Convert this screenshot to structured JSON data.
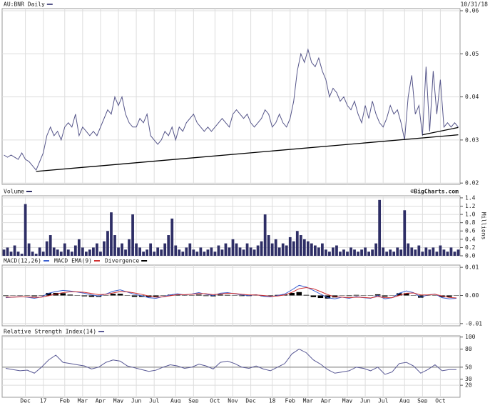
{
  "chart_data": [
    {
      "type": "line",
      "date": "10/31/18",
      "series": [
        {
          "name": "AU:BNR Daily",
          "color": "#56568a",
          "values": [
            0.0265,
            0.026,
            0.0265,
            0.026,
            0.0255,
            0.027,
            0.0255,
            0.025,
            0.024,
            0.023,
            0.025,
            0.027,
            0.031,
            0.033,
            0.031,
            0.032,
            0.03,
            0.033,
            0.034,
            0.033,
            0.036,
            0.031,
            0.033,
            0.032,
            0.031,
            0.032,
            0.031,
            0.033,
            0.035,
            0.037,
            0.036,
            0.04,
            0.038,
            0.04,
            0.036,
            0.034,
            0.033,
            0.033,
            0.035,
            0.034,
            0.036,
            0.031,
            0.03,
            0.029,
            0.03,
            0.032,
            0.031,
            0.033,
            0.03,
            0.033,
            0.032,
            0.034,
            0.035,
            0.036,
            0.034,
            0.033,
            0.032,
            0.033,
            0.032,
            0.033,
            0.034,
            0.035,
            0.034,
            0.033,
            0.036,
            0.037,
            0.036,
            0.035,
            0.036,
            0.034,
            0.033,
            0.034,
            0.035,
            0.037,
            0.036,
            0.033,
            0.034,
            0.036,
            0.034,
            0.033,
            0.035,
            0.039,
            0.046,
            0.05,
            0.048,
            0.051,
            0.048,
            0.047,
            0.049,
            0.046,
            0.044,
            0.04,
            0.042,
            0.041,
            0.039,
            0.04,
            0.038,
            0.037,
            0.039,
            0.036,
            0.034,
            0.038,
            0.035,
            0.039,
            0.036,
            0.034,
            0.033,
            0.035,
            0.038,
            0.036,
            0.037,
            0.034,
            0.03,
            0.04,
            0.045,
            0.036,
            0.038,
            0.031,
            0.047,
            0.032,
            0.046,
            0.036,
            0.044,
            0.033,
            0.034,
            0.033,
            0.034,
            0.033
          ]
        }
      ],
      "trend_lines": [
        {
          "x": [
            9,
            127
          ],
          "y": [
            0.0227,
            0.0312
          ],
          "color": "#000000"
        },
        {
          "x": [
            117,
            127
          ],
          "y": [
            0.0312,
            0.0329
          ],
          "color": "#000000"
        }
      ],
      "categories": [
        null,
        null,
        null,
        null,
        null,
        null,
        "Dec",
        null,
        null,
        null,
        null,
        "17",
        null,
        null,
        null,
        null,
        null,
        "Feb",
        null,
        null,
        null,
        null,
        "Mar",
        null,
        null,
        null,
        null,
        "Apr",
        null,
        null,
        null,
        null,
        "May",
        null,
        null,
        null,
        null,
        "Jun",
        null,
        null,
        null,
        null,
        "Jul",
        null,
        null,
        null,
        null,
        null,
        "Aug",
        null,
        null,
        null,
        null,
        "Sep",
        null,
        null,
        null,
        null,
        null,
        "Oct",
        null,
        null,
        null,
        null,
        "Nov",
        null,
        null,
        null,
        null,
        "Dec",
        null,
        null,
        null,
        null,
        null,
        "18",
        null,
        null,
        null,
        null,
        "Feb",
        null,
        null,
        null,
        null,
        "Mar",
        null,
        null,
        null,
        null,
        "Apr",
        null,
        null,
        null,
        null,
        null,
        "May",
        null,
        null,
        null,
        null,
        "Jun",
        null,
        null,
        null,
        null,
        "Jul",
        null,
        null,
        null,
        null,
        null,
        "Aug",
        null,
        null,
        null,
        null,
        "Sep",
        null,
        null,
        null,
        null,
        "Oct",
        null,
        null,
        null,
        null,
        null
      ],
      "ylim": [
        0.0197,
        0.0605
      ],
      "yticks": [
        0.02,
        0.03,
        0.04,
        0.05,
        0.06
      ],
      "grid": true
    },
    {
      "type": "bar",
      "source": "©BigCharts.com",
      "ylabel": "Millions",
      "series": [
        {
          "name": "Volume",
          "color": "#2e2e66",
          "values": [
            0.15,
            0.2,
            0.1,
            0.25,
            0.1,
            0.05,
            1.25,
            0.3,
            0.1,
            0.05,
            0.2,
            0.1,
            0.35,
            0.5,
            0.2,
            0.15,
            0.1,
            0.3,
            0.15,
            0.1,
            0.25,
            0.4,
            0.2,
            0.1,
            0.15,
            0.2,
            0.3,
            0.1,
            0.35,
            0.6,
            1.05,
            0.5,
            0.2,
            0.3,
            0.15,
            0.4,
            1.0,
            0.3,
            0.2,
            0.1,
            0.15,
            0.3,
            0.1,
            0.2,
            0.15,
            0.3,
            0.5,
            0.9,
            0.25,
            0.15,
            0.1,
            0.2,
            0.3,
            0.15,
            0.1,
            0.2,
            0.1,
            0.15,
            0.2,
            0.1,
            0.25,
            0.15,
            0.3,
            0.2,
            0.4,
            0.3,
            0.2,
            0.15,
            0.3,
            0.2,
            0.15,
            0.25,
            0.35,
            1.0,
            0.5,
            0.3,
            0.4,
            0.2,
            0.3,
            0.25,
            0.45,
            0.35,
            0.6,
            0.5,
            0.4,
            0.35,
            0.3,
            0.25,
            0.2,
            0.3,
            0.15,
            0.1,
            0.2,
            0.25,
            0.1,
            0.15,
            0.1,
            0.2,
            0.15,
            0.1,
            0.15,
            0.2,
            0.1,
            0.15,
            0.3,
            1.35,
            0.2,
            0.1,
            0.15,
            0.1,
            0.2,
            0.15,
            1.1,
            0.3,
            0.2,
            0.15,
            0.25,
            0.1,
            0.2,
            0.15,
            0.2,
            0.1,
            0.25,
            0.15,
            0.1,
            0.2,
            0.1,
            0.15
          ]
        }
      ],
      "ylim": [
        0,
        1.45
      ],
      "yticks": [
        {
          "value": 0,
          "label": "0.0"
        },
        0.2,
        0.4,
        0.6,
        0.8,
        {
          "value": 1,
          "label": "1.0"
        },
        1.2,
        1.4
      ],
      "grid": true
    },
    {
      "type": "line",
      "series": [
        {
          "name": "MACD(12,26)",
          "color": "#3a5fd0",
          "values": [
            -0.0008,
            -0.0006,
            -0.0004,
            -0.0006,
            -0.001,
            -0.0005,
            0.0008,
            0.0014,
            0.0018,
            0.0016,
            0.0012,
            0.0008,
            0.0002,
            -0.0002,
            0.0005,
            0.0015,
            0.002,
            0.0012,
            0.0004,
            -0.0001,
            -0.0008,
            -0.001,
            -0.0004,
            0.0002,
            0.0006,
            0.0002,
            0.0005,
            0.001,
            0.0004,
            0.0,
            0.0008,
            0.001,
            0.0006,
            0.0002,
            0.0,
            0.0003,
            -0.0003,
            -0.0005,
            0.0,
            0.0005,
            0.002,
            0.0036,
            0.003,
            0.0018,
            0.0005,
            -0.0008,
            -0.0012,
            -0.0006,
            -0.001,
            -0.0004,
            -0.0008,
            -0.001,
            0.0,
            -0.0012,
            -0.0008,
            0.0008,
            0.0016,
            0.001,
            -0.0006,
            0.0002,
            0.0005,
            -0.0008,
            -0.0012,
            -0.001
          ]
        },
        {
          "name": "MACD EMA(9)",
          "color": "#d03030",
          "values": [
            -0.0006,
            -0.0006,
            -0.0005,
            -0.0005,
            -0.0007,
            -0.0006,
            -0.0001,
            0.0005,
            0.001,
            0.0013,
            0.0013,
            0.0011,
            0.0007,
            0.0003,
            0.0004,
            0.0009,
            0.0014,
            0.0013,
            0.0009,
            0.0004,
            -0.0002,
            -0.0006,
            -0.0005,
            -0.0001,
            0.0003,
            0.0003,
            0.0004,
            0.0007,
            0.0006,
            0.0003,
            0.0005,
            0.0008,
            0.0007,
            0.0004,
            0.0002,
            0.0002,
            0.0,
            -0.0003,
            -0.0002,
            0.0002,
            0.0011,
            0.0024,
            0.0028,
            0.0024,
            0.0014,
            0.0003,
            -0.0005,
            -0.0006,
            -0.0008,
            -0.0006,
            -0.0007,
            -0.0009,
            -0.0004,
            -0.0008,
            -0.0008,
            0.0,
            0.0008,
            0.0009,
            0.0002,
            0.0002,
            0.0004,
            -0.0002,
            -0.0007,
            -0.0009
          ]
        },
        {
          "name": "Divergence",
          "color": "#000000",
          "style": "bar",
          "values": [
            -0.0002,
            0,
            0.0001,
            -0.0001,
            -0.0003,
            0.0001,
            0.0009,
            0.0009,
            0.0008,
            0.0003,
            -0.0001,
            -0.0003,
            -0.0005,
            -0.0005,
            0.0001,
            0.0006,
            0.0006,
            -0.0001,
            -0.0005,
            -0.0005,
            -0.0006,
            -0.0004,
            0.0001,
            0.0003,
            0.0003,
            -0.0001,
            0.0001,
            0.0003,
            -0.0002,
            -0.0003,
            0.0003,
            0.0002,
            -0.0001,
            -0.0002,
            -0.0002,
            0.0001,
            -0.0003,
            -0.0002,
            0.0002,
            0.0003,
            0.0009,
            0.0012,
            0.0002,
            -0.0006,
            -0.0009,
            -0.0011,
            -0.0007,
            0,
            -0.0002,
            0.0002,
            -0.0001,
            -0.0001,
            0.0004,
            -0.0004,
            0,
            0.0008,
            0.0008,
            0.0001,
            -0.0008,
            0,
            0.0001,
            -0.0006,
            -0.0005,
            -0.0001
          ]
        }
      ],
      "ylim": [
        -0.0108,
        0.0108
      ],
      "yticks": [
        -0.01,
        {
          "value": 0,
          "label": "0.00"
        },
        0.01
      ],
      "grid": true
    },
    {
      "type": "line",
      "series": [
        {
          "name": "Relative Strength Index(14)",
          "color": "#5a5a96",
          "values": [
            48,
            46,
            44,
            45,
            40,
            50,
            62,
            70,
            58,
            56,
            54,
            52,
            47,
            50,
            58,
            62,
            60,
            52,
            49,
            46,
            43,
            45,
            50,
            54,
            52,
            48,
            50,
            55,
            52,
            47,
            58,
            60,
            56,
            50,
            48,
            52,
            47,
            44,
            50,
            56,
            72,
            80,
            74,
            62,
            55,
            46,
            40,
            42,
            44,
            50,
            48,
            44,
            50,
            38,
            42,
            56,
            58,
            52,
            40,
            46,
            54,
            44,
            46,
            46
          ]
        }
      ],
      "reference_line": 50,
      "ylim": [
        0,
        102
      ],
      "yticks": [
        20,
        30,
        50,
        80,
        100
      ],
      "grid": true
    }
  ]
}
